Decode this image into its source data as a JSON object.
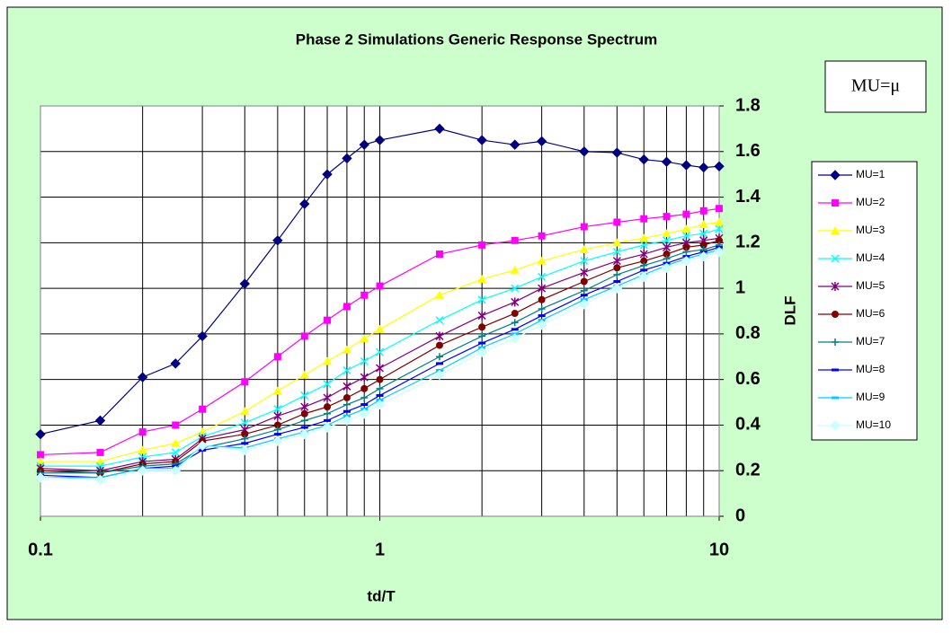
{
  "chart_data": {
    "type": "line",
    "title": "Phase 2 Simulations Generic Response Spectrum",
    "xlabel": "td/T",
    "ylabel": "DLF",
    "annotation": "MU=μ",
    "xscale": "log",
    "xlim": [
      0.1,
      10
    ],
    "xticks": [
      0.1,
      1,
      10
    ],
    "xgrid_minor": [
      0.2,
      0.3,
      0.4,
      0.5,
      0.6,
      0.7,
      0.8,
      0.9,
      2,
      3,
      4,
      5,
      6,
      7,
      8,
      9
    ],
    "ylim": [
      0,
      1.8
    ],
    "yticks": [
      0,
      0.2,
      0.4,
      0.6,
      0.8,
      1,
      1.2,
      1.4,
      1.6,
      1.8
    ],
    "grid": true,
    "legend": "right",
    "x": [
      0.1,
      0.15,
      0.2,
      0.25,
      0.3,
      0.4,
      0.5,
      0.6,
      0.7,
      0.8,
      0.9,
      1,
      1.5,
      2,
      2.5,
      3,
      4,
      5,
      6,
      7,
      8,
      9,
      10
    ],
    "series": [
      {
        "name": "MU=1",
        "color": "#000080",
        "marker": "diamond",
        "values": [
          0.36,
          0.42,
          0.61,
          0.67,
          0.79,
          1.02,
          1.21,
          1.37,
          1.5,
          1.57,
          1.63,
          1.65,
          1.7,
          1.65,
          1.63,
          1.645,
          1.6,
          1.595,
          1.565,
          1.555,
          1.54,
          1.53,
          1.535
        ]
      },
      {
        "name": "MU=2",
        "color": "#ff00ff",
        "marker": "square",
        "values": [
          0.27,
          0.28,
          0.37,
          0.4,
          0.47,
          0.59,
          0.7,
          0.79,
          0.86,
          0.92,
          0.97,
          1.01,
          1.15,
          1.19,
          1.21,
          1.23,
          1.27,
          1.29,
          1.305,
          1.315,
          1.325,
          1.34,
          1.35
        ]
      },
      {
        "name": "MU=3",
        "color": "#ffff00",
        "marker": "triangle",
        "values": [
          0.24,
          0.24,
          0.29,
          0.32,
          0.37,
          0.46,
          0.55,
          0.62,
          0.68,
          0.73,
          0.78,
          0.82,
          0.97,
          1.04,
          1.08,
          1.12,
          1.17,
          1.2,
          1.22,
          1.24,
          1.26,
          1.28,
          1.29
        ]
      },
      {
        "name": "MU=4",
        "color": "#00ffff",
        "marker": "x",
        "values": [
          0.22,
          0.22,
          0.26,
          0.28,
          0.35,
          0.41,
          0.47,
          0.53,
          0.58,
          0.64,
          0.68,
          0.72,
          0.86,
          0.95,
          1.0,
          1.05,
          1.12,
          1.16,
          1.19,
          1.21,
          1.23,
          1.24,
          1.26
        ]
      },
      {
        "name": "MU=5",
        "color": "#800080",
        "marker": "star",
        "values": [
          0.21,
          0.2,
          0.24,
          0.25,
          0.34,
          0.38,
          0.44,
          0.48,
          0.52,
          0.57,
          0.61,
          0.65,
          0.79,
          0.88,
          0.94,
          1.0,
          1.07,
          1.12,
          1.15,
          1.18,
          1.2,
          1.21,
          1.22
        ]
      },
      {
        "name": "MU=6",
        "color": "#800000",
        "marker": "circle",
        "values": [
          0.2,
          0.19,
          0.23,
          0.24,
          0.33,
          0.36,
          0.4,
          0.45,
          0.48,
          0.52,
          0.56,
          0.6,
          0.75,
          0.83,
          0.89,
          0.95,
          1.03,
          1.09,
          1.12,
          1.15,
          1.18,
          1.19,
          1.21
        ]
      },
      {
        "name": "MU=7",
        "color": "#008080",
        "marker": "plus",
        "values": [
          0.19,
          0.19,
          0.22,
          0.23,
          0.3,
          0.34,
          0.38,
          0.42,
          0.45,
          0.49,
          0.52,
          0.56,
          0.7,
          0.79,
          0.85,
          0.91,
          0.99,
          1.06,
          1.1,
          1.13,
          1.16,
          1.17,
          1.19
        ]
      },
      {
        "name": "MU=8",
        "color": "#0000ff",
        "marker": "dash",
        "values": [
          0.18,
          0.17,
          0.21,
          0.22,
          0.29,
          0.32,
          0.36,
          0.39,
          0.42,
          0.46,
          0.49,
          0.53,
          0.67,
          0.76,
          0.82,
          0.88,
          0.97,
          1.03,
          1.08,
          1.11,
          1.14,
          1.16,
          1.18
        ]
      },
      {
        "name": "MU=9",
        "color": "#00ccff",
        "marker": "dash",
        "values": [
          0.17,
          0.17,
          0.21,
          0.21,
          0.31,
          0.3,
          0.34,
          0.37,
          0.4,
          0.44,
          0.47,
          0.51,
          0.64,
          0.74,
          0.8,
          0.86,
          0.95,
          1.01,
          1.06,
          1.1,
          1.13,
          1.15,
          1.17
        ]
      },
      {
        "name": "MU=10",
        "color": "#ccffff",
        "marker": "diamond",
        "values": [
          0.17,
          0.16,
          0.2,
          0.2,
          0.31,
          0.29,
          0.33,
          0.36,
          0.39,
          0.42,
          0.45,
          0.49,
          0.62,
          0.72,
          0.78,
          0.84,
          0.93,
          1.0,
          1.05,
          1.09,
          1.12,
          1.14,
          1.16
        ]
      }
    ]
  }
}
